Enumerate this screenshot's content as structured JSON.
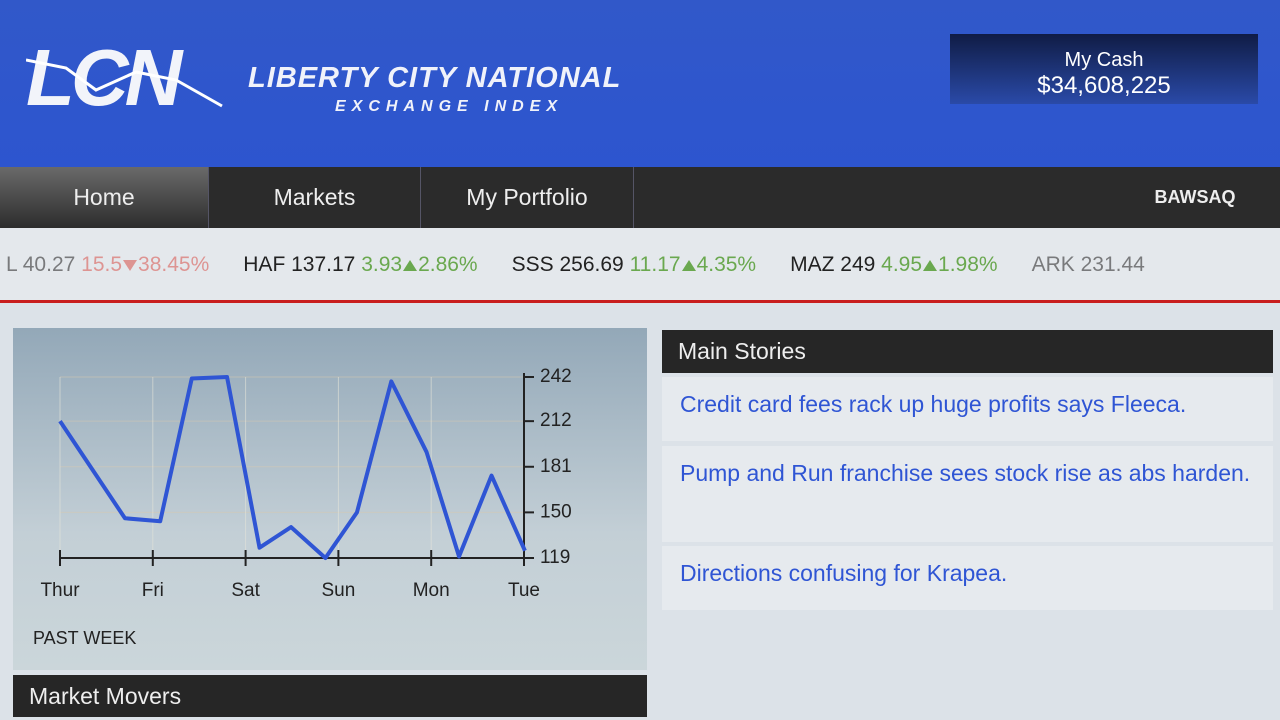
{
  "header": {
    "logo": "LCN",
    "title": "LIBERTY CITY NATIONAL",
    "subtitle": "EXCHANGE INDEX",
    "cash_label": "My Cash",
    "cash_value": "$34,608,225"
  },
  "nav": {
    "items": [
      "Home",
      "Markets",
      "My Portfolio"
    ],
    "brand": "BAWSAQ"
  },
  "ticker": [
    {
      "symbol": "L",
      "price": "40.27",
      "change": "15.5",
      "percent": "38.45%",
      "direction": "down"
    },
    {
      "symbol": "HAF",
      "price": "137.17",
      "change": "3.93",
      "percent": "2.86%",
      "direction": "up"
    },
    {
      "symbol": "SSS",
      "price": "256.69",
      "change": "11.17",
      "percent": "4.35%",
      "direction": "up"
    },
    {
      "symbol": "MAZ",
      "price": "249",
      "change": "4.95",
      "percent": "1.98%",
      "direction": "up"
    },
    {
      "symbol": "ARK",
      "price": "231.44"
    }
  ],
  "chart": {
    "type": "line",
    "color": "#2f55d4",
    "grid": true,
    "x": [
      0,
      0.7,
      1.08,
      1.42,
      1.8,
      2.15,
      2.49,
      2.86,
      3.2,
      3.57,
      3.95,
      4.3,
      4.65,
      5.01
    ],
    "values": [
      212,
      146,
      144,
      241,
      242,
      126,
      140,
      119,
      150,
      239,
      191,
      120,
      175,
      124
    ],
    "xlim": [
      0,
      5
    ],
    "xticks": [
      {
        "value": 0,
        "label": "Thur"
      },
      {
        "value": 1,
        "label": "Fri"
      },
      {
        "value": 2,
        "label": "Sat"
      },
      {
        "value": 3,
        "label": "Sun"
      },
      {
        "value": 4,
        "label": "Mon"
      },
      {
        "value": 5,
        "label": "Tue"
      }
    ],
    "ylim": [
      119,
      242
    ],
    "yticks": [
      119,
      150,
      181,
      212,
      242
    ],
    "label": "PAST WEEK"
  },
  "main_stories": {
    "heading": "Main Stories",
    "stories": [
      "Credit card fees rack up huge profits says Fleeca.",
      "Pump and Run franchise sees stock rise as abs harden.",
      "Directions confusing for Krapea."
    ]
  },
  "market_movers": {
    "heading": "Market Movers"
  }
}
